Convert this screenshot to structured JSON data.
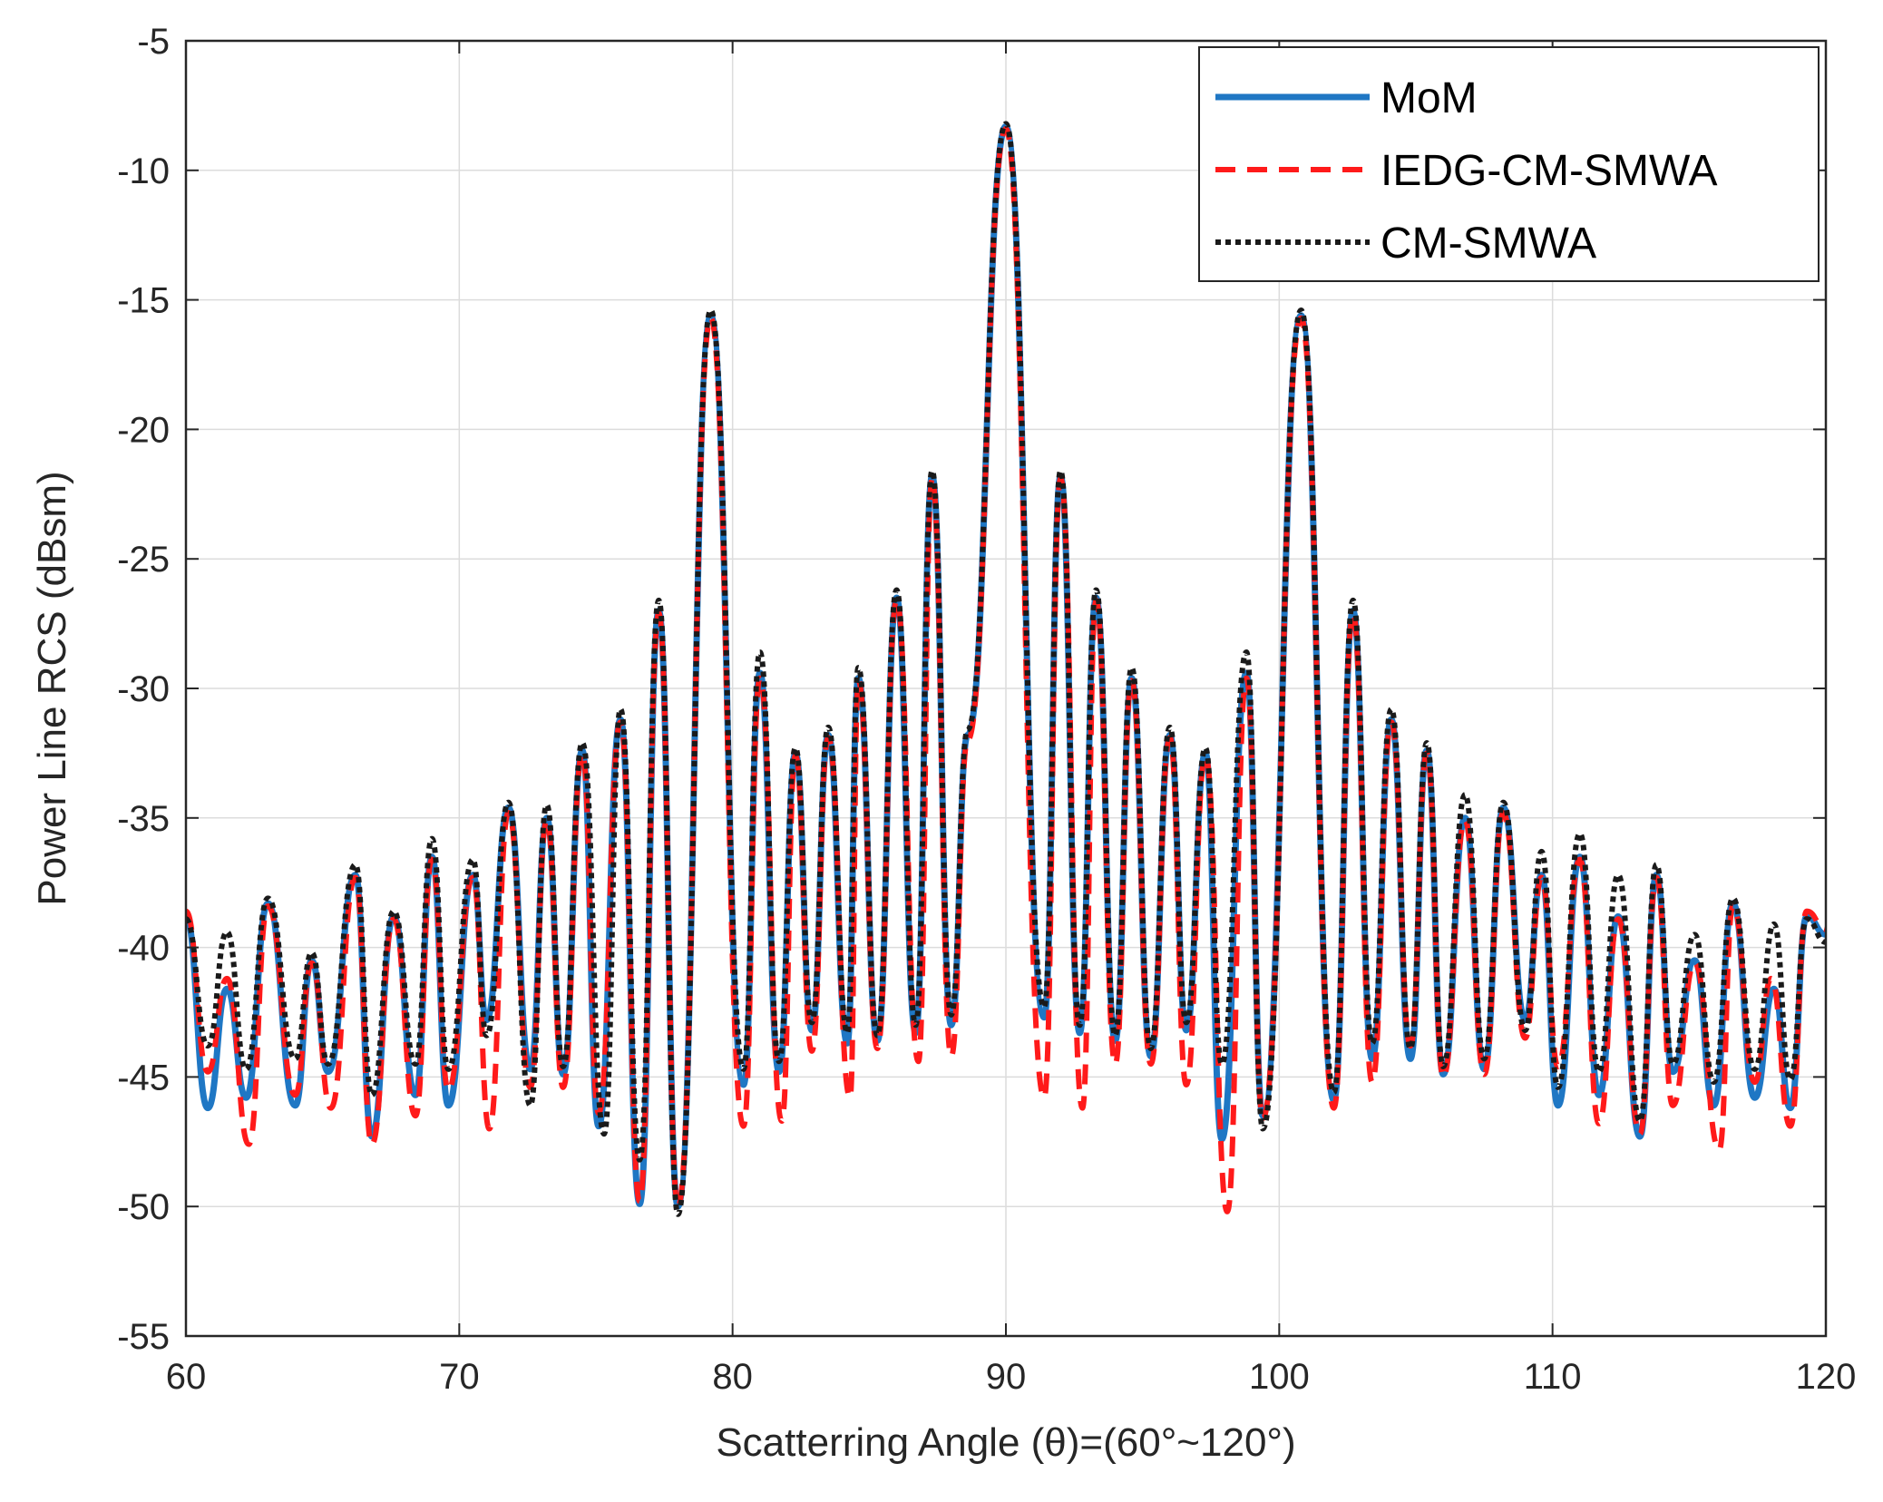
{
  "chart_data": {
    "type": "line",
    "title": "",
    "xlabel": "Scatterring Angle (θ)=(60°~120°)",
    "ylabel": "Power Line RCS (dBsm)",
    "xlim": [
      60,
      120
    ],
    "ylim": [
      -55,
      -5
    ],
    "xticks": [
      60,
      70,
      80,
      90,
      100,
      110,
      120
    ],
    "yticks": [
      -5,
      -10,
      -15,
      -20,
      -25,
      -30,
      -35,
      -40,
      -45,
      -50,
      -55
    ],
    "xtick_labels": [
      "60",
      "70",
      "80",
      "90",
      "100",
      "110",
      "120"
    ],
    "ytick_labels": [
      "-5",
      "-10",
      "-15",
      "-20",
      "-25",
      "-30",
      "-35",
      "-40",
      "-45",
      "-50",
      "-55"
    ],
    "grid": true,
    "legend_position": "top-right",
    "series": [
      {
        "name": "MoM",
        "color": "#1f77c4",
        "style": "solid",
        "x": [
          60,
          60.8,
          61.5,
          62.2,
          63,
          64,
          64.6,
          65.2,
          66.2,
          66.8,
          67.6,
          68.4,
          69,
          69.6,
          70.5,
          71,
          71.8,
          72.6,
          73.2,
          73.8,
          74.5,
          75.1,
          75.9,
          76.6,
          77.3,
          78,
          79.2,
          80.4,
          81,
          81.7,
          82.3,
          82.9,
          83.5,
          84.2,
          84.6,
          85.3,
          86,
          86.7,
          87.3,
          88,
          88.6,
          90,
          91.4,
          92,
          92.7,
          93.3,
          94,
          94.6,
          95.3,
          96,
          96.6,
          97.3,
          97.9,
          98.8,
          99.4,
          100.8,
          102,
          102.7,
          103.4,
          104.1,
          104.8,
          105.4,
          106,
          106.8,
          107.5,
          108.2,
          109,
          109.6,
          110.2,
          111,
          111.7,
          112.4,
          113.2,
          113.8,
          114.4,
          115.2,
          115.9,
          116.6,
          117.4,
          118.1,
          118.7,
          119.3,
          120
        ],
        "values": [
          -38.8,
          -46.2,
          -41.6,
          -45.8,
          -38.3,
          -46.1,
          -40.5,
          -44.8,
          -37.2,
          -47.3,
          -38.8,
          -45.7,
          -36.5,
          -46.1,
          -37.2,
          -42.8,
          -34.6,
          -44.7,
          -35,
          -44.9,
          -32.4,
          -46.9,
          -31.2,
          -49.9,
          -27,
          -50,
          -15.6,
          -45.3,
          -29.4,
          -44.8,
          -32.5,
          -43.2,
          -31.8,
          -43.7,
          -29.6,
          -43.6,
          -26.5,
          -43.3,
          -21.8,
          -43,
          -31.8,
          -8.3,
          -42.7,
          -21.8,
          -43.3,
          -26.5,
          -43.6,
          -29.6,
          -44.2,
          -31.8,
          -43.2,
          -32.5,
          -47.4,
          -29.4,
          -46.5,
          -15.6,
          -45.9,
          -27,
          -44.3,
          -31.2,
          -44.3,
          -32.4,
          -44.9,
          -35,
          -44.7,
          -34.6,
          -42.8,
          -37.2,
          -46.1,
          -36.5,
          -45.7,
          -38.8,
          -47.3,
          -37.2,
          -44.8,
          -40.5,
          -46.1,
          -38.3,
          -45.8,
          -41.6,
          -46.2,
          -38.8,
          -39.5
        ]
      },
      {
        "name": "IEDG-CM-SMWA",
        "color": "#ff1a1a",
        "style": "dashed",
        "x": [
          60,
          60.8,
          61.5,
          62.3,
          63,
          64,
          64.6,
          65.3,
          66.2,
          66.8,
          67.6,
          68.4,
          69,
          69.6,
          70.5,
          71.1,
          71.8,
          72.6,
          73.2,
          73.8,
          74.5,
          75.1,
          75.9,
          76.6,
          77.3,
          78,
          79.2,
          80.4,
          81,
          81.8,
          82.3,
          82.9,
          83.5,
          84.3,
          84.6,
          85.3,
          86,
          86.8,
          87.3,
          88,
          88.6,
          90,
          91.4,
          92,
          92.8,
          93.3,
          94,
          94.6,
          95.3,
          96,
          96.6,
          97.3,
          98.1,
          98.8,
          99.4,
          100.8,
          102,
          102.7,
          103.4,
          104.1,
          104.8,
          105.4,
          106,
          106.8,
          107.5,
          108.2,
          109,
          109.6,
          110.2,
          111,
          111.7,
          112.4,
          113.2,
          113.8,
          114.4,
          115.2,
          116.1,
          116.6,
          117.4,
          118,
          118.7,
          119.3,
          120
        ],
        "values": [
          -38.6,
          -44.8,
          -41.2,
          -47.6,
          -38.4,
          -45.7,
          -40.6,
          -46.2,
          -37.3,
          -47.6,
          -38.9,
          -46.5,
          -36.6,
          -45.5,
          -37.3,
          -47,
          -34.8,
          -45.4,
          -35.1,
          -45.4,
          -32.5,
          -46.4,
          -31.3,
          -49.8,
          -27.1,
          -50,
          -15.7,
          -46.9,
          -29.6,
          -46.7,
          -32.6,
          -44,
          -31.9,
          -45.8,
          -29.7,
          -43.9,
          -26.6,
          -44.4,
          -21.9,
          -44.2,
          -32,
          -8.4,
          -45.8,
          -21.9,
          -46.2,
          -26.6,
          -44.5,
          -29.7,
          -44.5,
          -31.9,
          -45.3,
          -32.6,
          -50.2,
          -29.6,
          -46.6,
          -15.7,
          -46.2,
          -27.1,
          -45.2,
          -31.3,
          -43.8,
          -32.5,
          -45,
          -35.1,
          -44.9,
          -34.8,
          -43.5,
          -37.3,
          -44.6,
          -36.6,
          -46.8,
          -38.9,
          -47.2,
          -37.3,
          -46.1,
          -40.6,
          -47.8,
          -38.4,
          -45.2,
          -41.2,
          -46.9,
          -38.6,
          -39.3
        ]
      },
      {
        "name": "CM-SMWA",
        "color": "#1a1a1a",
        "style": "dotted",
        "x": [
          60,
          60.8,
          61.5,
          62.2,
          63,
          64,
          64.6,
          65.2,
          66.2,
          66.8,
          67.6,
          68.4,
          69,
          69.6,
          70.5,
          71,
          71.8,
          72.6,
          73.2,
          73.8,
          74.5,
          75.3,
          75.9,
          76.6,
          77.3,
          78,
          79.2,
          80.4,
          81,
          81.7,
          82.3,
          82.9,
          83.5,
          84.2,
          84.6,
          85.3,
          86,
          86.7,
          87.3,
          88,
          88.6,
          90,
          91.4,
          92,
          92.7,
          93.3,
          94,
          94.6,
          95.3,
          96,
          96.6,
          97.3,
          97.9,
          98.8,
          99.4,
          100.8,
          102,
          102.7,
          103.4,
          104.1,
          104.8,
          105.4,
          106,
          106.8,
          107.5,
          108.2,
          109,
          109.6,
          110.2,
          111,
          111.7,
          112.4,
          113.2,
          113.8,
          114.4,
          115.2,
          115.9,
          116.6,
          117.4,
          118.1,
          118.7,
          119.3,
          120
        ],
        "values": [
          -38.9,
          -43.8,
          -39.4,
          -44.7,
          -38.1,
          -44.3,
          -40.2,
          -44.5,
          -36.8,
          -45.7,
          -38.6,
          -44.5,
          -35.8,
          -44.7,
          -36.6,
          -43.4,
          -34.4,
          -46.1,
          -34.5,
          -44.6,
          -32.1,
          -47.2,
          -30.8,
          -48.2,
          -26.6,
          -50.3,
          -15.4,
          -44.7,
          -28.6,
          -44.4,
          -32.3,
          -42.9,
          -31.5,
          -43.3,
          -29.2,
          -43.4,
          -26.2,
          -43,
          -21.6,
          -42.6,
          -31.6,
          -8.2,
          -42.3,
          -21.6,
          -43,
          -26.2,
          -43.4,
          -29.2,
          -43.9,
          -31.5,
          -42.9,
          -32.3,
          -44.5,
          -28.6,
          -47,
          -15.4,
          -45.6,
          -26.6,
          -43.7,
          -30.8,
          -43.9,
          -32.1,
          -44.6,
          -34.1,
          -44.3,
          -34.4,
          -43.2,
          -36.3,
          -45.4,
          -35.6,
          -44.8,
          -37.2,
          -46.7,
          -36.8,
          -44.5,
          -39.5,
          -45.2,
          -38.1,
          -44.7,
          -39.1,
          -45.1,
          -38.9,
          -39.8
        ]
      }
    ]
  }
}
